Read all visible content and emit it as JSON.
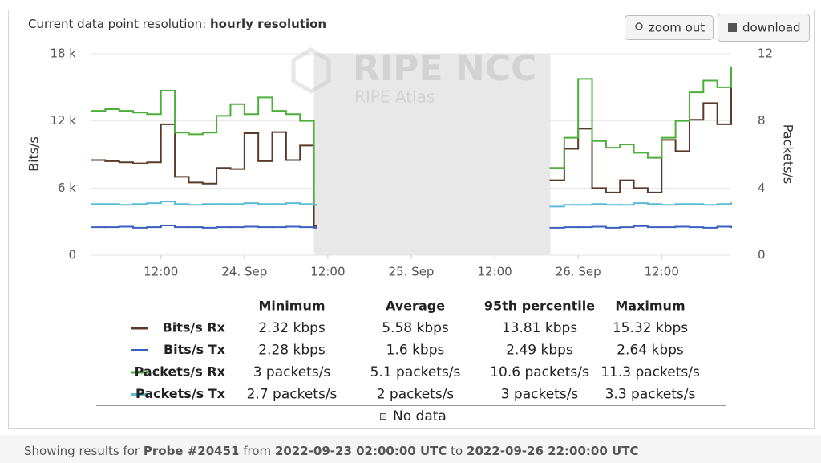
{
  "header": {
    "resolution_label": "Current data point resolution:",
    "resolution_value": "hourly resolution",
    "zoom_button": "zoom out",
    "download_button": "download"
  },
  "watermark": {
    "title": "RIPE NCC",
    "subtitle": "RIPE Atlas"
  },
  "chart_data": {
    "type": "step-line",
    "y_label": "Bits/s",
    "y2_label": "Packets/s",
    "xlim": [
      "2022-09-23T02:00",
      "2022-09-26T22:00"
    ],
    "xticks": [
      {
        "value": "2022-09-23T12:00",
        "label": "12:00"
      },
      {
        "value": "2022-09-24T00:00",
        "label": "24. Sep"
      },
      {
        "value": "2022-09-24T12:00",
        "label": "12:00"
      },
      {
        "value": "2022-09-25T00:00",
        "label": "25. Sep"
      },
      {
        "value": "2022-09-25T12:00",
        "label": "12:00"
      },
      {
        "value": "2022-09-26T00:00",
        "label": "26. Sep"
      },
      {
        "value": "2022-09-26T12:00",
        "label": "12:00"
      }
    ],
    "ylim": [
      0,
      18000
    ],
    "yticks": [
      0,
      {
        "value": 6000,
        "label": "6 k"
      },
      {
        "value": 12000,
        "label": "12 k"
      },
      {
        "value": 18000,
        "label": "18 k"
      }
    ],
    "y2lim": [
      0,
      12
    ],
    "y2ticks": [
      0,
      4,
      8,
      12
    ],
    "grid": true,
    "no_data_label": "No data",
    "x": [
      "2022-09-23T02:00",
      "2022-09-23T04:00",
      "2022-09-23T06:00",
      "2022-09-23T08:00",
      "2022-09-23T10:00",
      "2022-09-23T12:00",
      "2022-09-23T14:00",
      "2022-09-23T16:00",
      "2022-09-23T18:00",
      "2022-09-23T20:00",
      "2022-09-23T22:00",
      "2022-09-24T00:00",
      "2022-09-24T02:00",
      "2022-09-24T04:00",
      "2022-09-24T06:00",
      "2022-09-24T08:00",
      "2022-09-24T10:00",
      "2022-09-24T12:00",
      "2022-09-25T20:00",
      "2022-09-25T22:00",
      "2022-09-26T00:00",
      "2022-09-26T02:00",
      "2022-09-26T04:00",
      "2022-09-26T06:00",
      "2022-09-26T08:00",
      "2022-09-26T10:00",
      "2022-09-26T12:00",
      "2022-09-26T14:00",
      "2022-09-26T16:00",
      "2022-09-26T18:00",
      "2022-09-26T20:00",
      "2022-09-26T22:00"
    ],
    "series": [
      {
        "name": "Bits/s Rx",
        "color": "#5b3a29",
        "values": [
          8500,
          8400,
          8300,
          8200,
          8300,
          11700,
          7000,
          6500,
          6400,
          7800,
          7700,
          10900,
          8400,
          11000,
          8500,
          9800,
          2600,
          null,
          6700,
          9500,
          11300,
          6000,
          5600,
          6700,
          6000,
          5600,
          10300,
          9300,
          12100,
          13600,
          11700,
          15300
        ]
      },
      {
        "name": "Bits/s Tx",
        "color": "#3b5fc0",
        "values": [
          2500,
          2500,
          2550,
          2450,
          2500,
          2650,
          2500,
          2500,
          2450,
          2500,
          2500,
          2550,
          2500,
          2500,
          2550,
          2500,
          2450,
          null,
          2450,
          2500,
          2500,
          2550,
          2450,
          2500,
          2600,
          2500,
          2500,
          2550,
          2500,
          2450,
          2550,
          2500
        ]
      },
      {
        "name": "Packets/s Rx",
        "color": "#4caf3a",
        "axis": "y2",
        "values": [
          8.6,
          8.7,
          8.6,
          8.5,
          8.4,
          9.8,
          7.3,
          7.2,
          7.3,
          8.3,
          9.0,
          8.4,
          9.4,
          8.6,
          8.4,
          8.0,
          3.0,
          null,
          5.2,
          7.0,
          10.5,
          6.8,
          6.4,
          6.6,
          6.1,
          5.8,
          7.0,
          8.0,
          9.7,
          10.4,
          10.0,
          11.2
        ]
      },
      {
        "name": "Packets/s Tx",
        "color": "#5bbcd6",
        "axis": "y2",
        "values": [
          3.05,
          3.05,
          3.0,
          3.05,
          3.1,
          3.2,
          3.05,
          3.0,
          3.05,
          3.05,
          3.05,
          3.1,
          3.05,
          3.05,
          3.1,
          3.05,
          3.0,
          null,
          2.9,
          3.0,
          3.0,
          3.05,
          3.0,
          3.0,
          3.1,
          3.05,
          3.0,
          3.05,
          3.05,
          3.0,
          3.05,
          3.1
        ]
      }
    ]
  },
  "stats": {
    "headers": [
      "Minimum",
      "Average",
      "95th percentile",
      "Maximum"
    ],
    "rows": [
      [
        "2.32 kbps",
        "5.58 kbps",
        "13.81 kbps",
        "15.32 kbps"
      ],
      [
        "2.28 kbps",
        "1.6 kbps",
        "2.49 kbps",
        "2.64 kbps"
      ],
      [
        "3 packets/s",
        "5.1 packets/s",
        "10.6 packets/s",
        "11.3 packets/s"
      ],
      [
        "2.7 packets/s",
        "2 packets/s",
        "3 packets/s",
        "3.3 packets/s"
      ]
    ]
  },
  "footer": {
    "prefix": "Showing results for",
    "probe": "Probe #20451",
    "from_word": "from",
    "from": "2022-09-23 02:00:00 UTC",
    "to_word": "to",
    "to": "2022-09-26 22:00:00 UTC"
  }
}
